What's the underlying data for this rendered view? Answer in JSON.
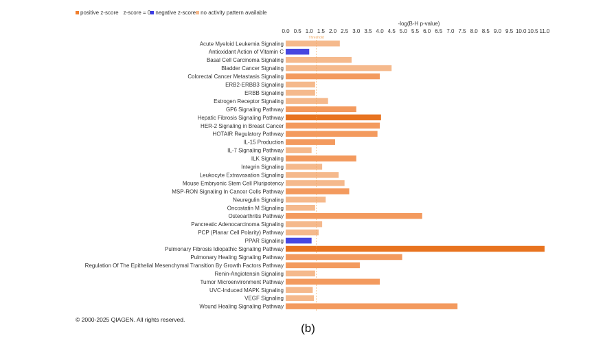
{
  "legend": {
    "items": [
      {
        "label": "positive z-score",
        "color": "#f07f2e"
      },
      {
        "label": "z-score = 0",
        "color": "#ffffff"
      },
      {
        "label": "negative z-score",
        "color": "#3b3be8"
      },
      {
        "label": "no activity pattern available",
        "color": "#f5b98c"
      }
    ]
  },
  "colors": {
    "pos_strong": "#e8731f",
    "pos": "#f39a5e",
    "na": "#f5b98c",
    "neg": "#4747e0",
    "threshold": "#f0a45a"
  },
  "chart_data": {
    "type": "bar",
    "orientation": "horizontal",
    "xlabel": "-log(B-H p-value)",
    "xticks": [
      "0.0",
      "0.5",
      "1.0",
      "1.5",
      "2.0",
      "2.5",
      "3.0",
      "3.5",
      "4.0",
      "4.5",
      "5.0",
      "5.5",
      "6.0",
      "6.5",
      "7.0",
      "7.5",
      "8.0",
      "8.5",
      "9.0",
      "9.5",
      "10.0",
      "10.5",
      "11.0"
    ],
    "xlim": [
      0,
      11.0
    ],
    "threshold": {
      "value": 1.3,
      "label": "Threshold"
    },
    "grid": false,
    "categories": [
      "Acute Myeloid Leukemia Signaling",
      "Antioxidant Action of Vitamin C",
      "Basal Cell Carcinoma Signaling",
      "Bladder Cancer Signaling",
      "Colorectal Cancer Metastasis Signaling",
      "ERB2-ERBB3 Signaling",
      "ERBB Signaling",
      "Estrogen Receptor Signaling",
      "GP6 Signaling Pathway",
      "Hepatic Fibrosis Signaling Pathway",
      "HER-2 Signaling in Breast Cancer",
      "HOTAIR Regulatory Pathway",
      "IL-15 Production",
      "IL-7 Signaling Pathway",
      "ILK Signaling",
      "Integrin Signaling",
      "Leukocyte Extravasation Signaling",
      "Mouse Embryonic Stem Cell Pluripotency",
      "MSP-RON Signaling In Cancer Cells Pathway",
      "Neuregulin Signaling",
      "Oncostatin M Signaling",
      "Osteoarthritis Pathway",
      "Pancreatic Adenocarcinoma Signaling",
      "PCP (Planar Cell Polarity) Pathway",
      "PPAR Signaling",
      "Pulmonary Fibrosis Idiopathic Signaling Pathway",
      "Pulmonary Healing Signaling Pathway",
      "Regulation Of The Epithelial Mesenchymal Transition By Growth Factors Pathway",
      "Renin-Angiotensin Signaling",
      "Tumor Microenvironment Pathway",
      "UVC-Induced MAPK Signaling",
      "VEGF Signaling",
      "Wound Healing Signaling Pathway"
    ],
    "values": [
      2.3,
      1.0,
      2.8,
      4.5,
      4.0,
      1.25,
      1.25,
      1.8,
      3.0,
      4.05,
      4.0,
      3.9,
      2.1,
      1.1,
      3.0,
      1.55,
      2.25,
      2.5,
      2.7,
      1.7,
      1.25,
      5.8,
      1.55,
      1.4,
      1.1,
      11.0,
      4.95,
      3.15,
      1.25,
      4.0,
      1.15,
      1.2,
      7.3
    ],
    "status": [
      "na",
      "neg",
      "na",
      "na",
      "pos",
      "na",
      "na",
      "na",
      "pos",
      "pos_strong",
      "pos",
      "pos",
      "pos",
      "na",
      "pos",
      "na",
      "na",
      "na",
      "pos",
      "na",
      "na",
      "pos",
      "na",
      "na",
      "neg",
      "pos_strong",
      "pos",
      "pos",
      "na",
      "pos",
      "na",
      "na",
      "pos"
    ]
  },
  "footer": {
    "copyright": "© 2000-2025 QIAGEN. All rights reserved.",
    "caption": "(b)"
  }
}
